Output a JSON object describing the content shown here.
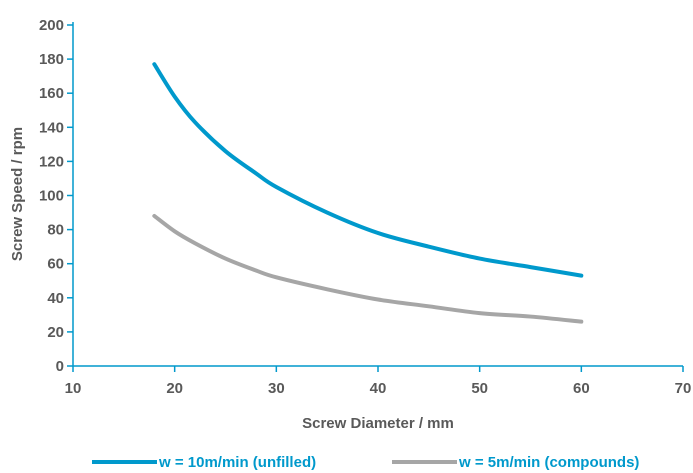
{
  "chart_data": {
    "type": "line",
    "title": "",
    "xlabel": "Screw Diameter / mm",
    "ylabel": "Screw Speed / rpm",
    "xlim": [
      10,
      70
    ],
    "ylim": [
      0,
      200
    ],
    "xticks": [
      "10",
      "20",
      "30",
      "40",
      "50",
      "60",
      "70"
    ],
    "yticks": [
      "0",
      "20",
      "40",
      "60",
      "80",
      "100",
      "120",
      "140",
      "160",
      "180",
      "200"
    ],
    "grid": false,
    "legend_position": "bottom",
    "series": [
      {
        "name": "w = 10m/min (unfilled)",
        "color": "#0099cc",
        "x": [
          18,
          20,
          22,
          25,
          28,
          30,
          35,
          40,
          45,
          50,
          55,
          60
        ],
        "y": [
          177,
          158,
          143,
          126,
          113,
          105,
          90,
          78,
          70,
          63,
          58,
          53
        ]
      },
      {
        "name": "w = 5m/min (compounds)",
        "color": "#a6a6a6",
        "x": [
          18,
          20,
          22,
          25,
          28,
          30,
          35,
          40,
          45,
          50,
          55,
          60
        ],
        "y": [
          88,
          79,
          72,
          63,
          56,
          52,
          45,
          39,
          35,
          31,
          29,
          26
        ]
      }
    ]
  }
}
